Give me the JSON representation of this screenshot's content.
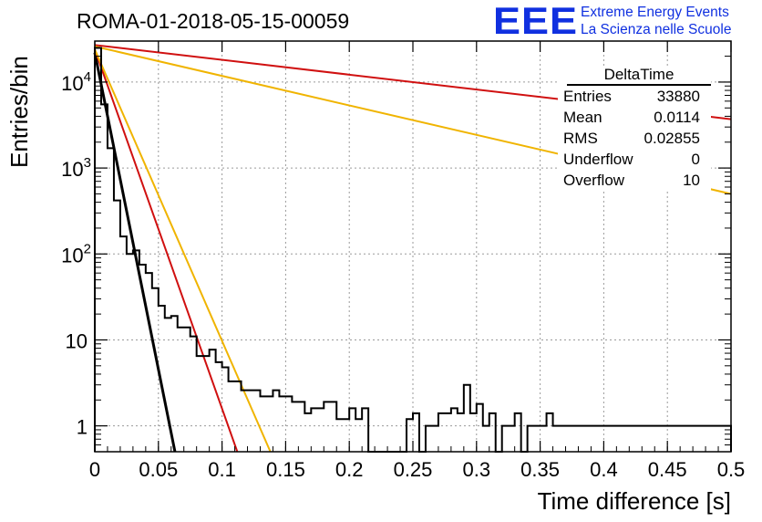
{
  "header": {
    "title": "ROMA-01-2018-05-15-00059",
    "logo_text": "EEE",
    "logo_line1": "Extreme Energy Events",
    "logo_line2": "La Scienza nelle Scuole",
    "logo_color": "#1030e0"
  },
  "stats_box": {
    "title": "DeltaTime",
    "rows": [
      {
        "label": "Entries",
        "value": "33880"
      },
      {
        "label": "Mean",
        "value": "0.0114"
      },
      {
        "label": "RMS",
        "value": "0.02855"
      },
      {
        "label": "Underflow",
        "value": "0"
      },
      {
        "label": "Overflow",
        "value": "10"
      }
    ]
  },
  "chart_data": {
    "type": "histogram",
    "title": "ROMA-01-2018-05-15-00059",
    "xlabel": "Time difference [s]",
    "ylabel": "Entries/bin",
    "xlim": [
      0,
      0.5
    ],
    "ylim": [
      0.5,
      30000
    ],
    "y_scale": "log",
    "grid": true,
    "bin_width": 0.005,
    "x_ticks": [
      "0",
      "0.05",
      "0.1",
      "0.15",
      "0.2",
      "0.25",
      "0.3",
      "0.35",
      "0.4",
      "0.45",
      "0.5"
    ],
    "y_ticks": [
      {
        "value": 1,
        "base": "1",
        "exp": ""
      },
      {
        "value": 10,
        "base": "10",
        "exp": ""
      },
      {
        "value": 100,
        "base": "10",
        "exp": "2"
      },
      {
        "value": 1000,
        "base": "10",
        "exp": "3"
      },
      {
        "value": 10000,
        "base": "10",
        "exp": "4"
      }
    ],
    "histogram_counts": [
      25000,
      5500,
      1700,
      420,
      160,
      100,
      110,
      75,
      60,
      40,
      25,
      18,
      19,
      14,
      14,
      11,
      6.5,
      6.5,
      7.7,
      5.5,
      4.8,
      3.3,
      3.3,
      2.6,
      2.6,
      2.6,
      2.2,
      2.2,
      2.6,
      2.2,
      2.2,
      1.9,
      1.9,
      1.4,
      1.6,
      1.6,
      1.9,
      1.9,
      1.2,
      1.2,
      1.6,
      1.2,
      1.6,
      0.5,
      0.5,
      0.5,
      0.5,
      0.5,
      0.5,
      1.2,
      1.4,
      0.5,
      1.0,
      1.0,
      1.4,
      1.4,
      1.6,
      1.4,
      3.0,
      1.4,
      1.8,
      1.0,
      1.4,
      0.5,
      1.0,
      1.0,
      1.4,
      0.5,
      1.0,
      1.0,
      1.0,
      1.4,
      1.0,
      1.0,
      1.0,
      1.0,
      1.0,
      1.0,
      1.0,
      1.0,
      1.0,
      1.0,
      1.0,
      1.0,
      1.0,
      1.0,
      1.0,
      1.0,
      1.0,
      1.0,
      1.0,
      1.0,
      1.0,
      1.0,
      1.0,
      1.0,
      1.0,
      1.0,
      1.0,
      1.0
    ],
    "histogram_color": "#000000",
    "fit_lines": [
      {
        "color": "#000000",
        "x": [
          0,
          0.063
        ],
        "y": [
          22000,
          0.5
        ]
      },
      {
        "color": "#d01010",
        "x": [
          0,
          0.112
        ],
        "y": [
          24000,
          0.5
        ]
      },
      {
        "color": "#f0b400",
        "x": [
          0,
          0.138
        ],
        "y": [
          24000,
          0.5
        ]
      },
      {
        "color": "#d01010",
        "x": [
          0,
          0.5
        ],
        "y": [
          27000,
          3700
        ]
      },
      {
        "color": "#f0b400",
        "x": [
          0,
          0.5
        ],
        "y": [
          26000,
          500
        ]
      }
    ]
  }
}
